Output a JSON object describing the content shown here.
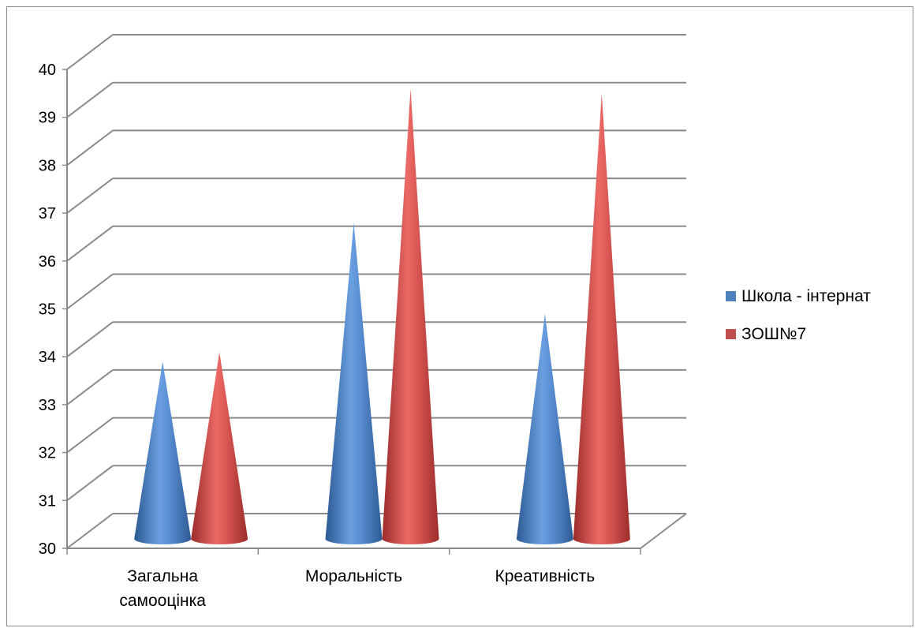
{
  "chart_data": {
    "type": "bar",
    "categories": [
      "Загальна самооцінка",
      "Моральність",
      "Креативність"
    ],
    "category_lines": [
      [
        "Загальна",
        "самооцінка"
      ],
      [
        "Моральність"
      ],
      [
        "Креативність"
      ]
    ],
    "series": [
      {
        "name": "Школа - інтернат",
        "values": [
          33.7,
          36.6,
          34.7
        ],
        "color": "#4f81bd"
      },
      {
        "name": "ЗОШ№7",
        "values": [
          33.9,
          39.4,
          39.3
        ],
        "color": "#c0504d"
      }
    ],
    "ylim": [
      30,
      40
    ],
    "yticks": [
      "30",
      "31",
      "32",
      "33",
      "34",
      "35",
      "36",
      "37",
      "38",
      "39",
      "40"
    ],
    "grid": true,
    "legend_position": "right",
    "mark_shape": "cone-3d"
  }
}
